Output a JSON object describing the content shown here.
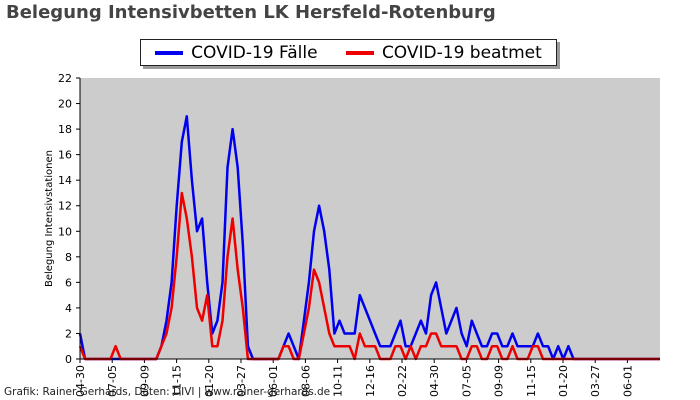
{
  "chart_data": {
    "type": "line",
    "title": "Belegung Intensivbetten LK Hersfeld-Rotenburg",
    "ylabel": "Belegung Intensivstationen",
    "ylim": [
      0,
      22
    ],
    "yticks": [
      0,
      2,
      4,
      6,
      8,
      10,
      12,
      14,
      16,
      18,
      20,
      22
    ],
    "grid": false,
    "legend_position": "top-center",
    "plot_background": "#cccccc",
    "x": [
      "2020-04-30",
      "2020-05-10",
      "2020-05-20",
      "2020-05-31",
      "2020-06-10",
      "2020-06-20",
      "2020-06-30",
      "2020-07-10",
      "2020-07-20",
      "2020-07-31",
      "2020-08-10",
      "2020-08-20",
      "2020-08-31",
      "2020-09-10",
      "2020-09-20",
      "2020-09-30",
      "2020-10-10",
      "2020-10-20",
      "2020-10-31",
      "2020-11-10",
      "2020-11-20",
      "2020-11-30",
      "2020-12-10",
      "2020-12-20",
      "2020-12-31",
      "2021-01-10",
      "2021-01-20",
      "2021-01-31",
      "2021-02-10",
      "2021-02-20",
      "2021-02-28",
      "2021-03-10",
      "2021-03-20",
      "2021-03-31",
      "2021-04-10",
      "2021-04-20",
      "2021-04-30",
      "2021-05-10",
      "2021-05-20",
      "2021-05-31",
      "2021-06-10",
      "2021-06-20",
      "2021-06-30",
      "2021-07-10",
      "2021-07-20",
      "2021-07-31",
      "2021-08-10",
      "2021-08-20",
      "2021-08-31",
      "2021-09-10",
      "2021-09-20",
      "2021-09-30",
      "2021-10-10",
      "2021-10-20",
      "2021-10-31",
      "2021-11-10",
      "2021-11-20",
      "2021-11-30",
      "2021-12-10",
      "2021-12-20",
      "2021-12-31",
      "2022-01-10",
      "2022-01-20",
      "2022-01-31",
      "2022-02-10",
      "2022-02-20",
      "2022-02-28",
      "2022-03-10",
      "2022-03-20",
      "2022-03-31",
      "2022-04-10",
      "2022-04-20",
      "2022-04-30",
      "2022-05-10",
      "2022-05-20",
      "2022-05-31",
      "2022-06-10",
      "2022-06-20",
      "2022-06-30",
      "2022-07-10",
      "2022-07-20",
      "2022-07-31",
      "2022-08-10",
      "2022-08-20",
      "2022-08-31",
      "2022-09-10",
      "2022-09-20",
      "2022-09-30",
      "2022-10-10",
      "2022-10-20",
      "2022-10-31",
      "2022-11-10",
      "2022-11-20",
      "2022-11-30",
      "2022-12-10",
      "2022-12-20",
      "2022-12-31",
      "2023-01-10",
      "2023-01-20",
      "2023-01-31",
      "2023-02-10",
      "2023-02-20",
      "2023-02-28",
      "2023-03-10",
      "2023-03-20",
      "2023-03-31",
      "2023-04-10",
      "2023-04-20",
      "2023-04-30",
      "2023-05-10",
      "2023-05-20",
      "2023-05-31",
      "2023-06-10",
      "2023-06-20",
      "2023-06-30"
    ],
    "series": [
      {
        "name": "COVID-19 Fälle",
        "color": "#0000ee",
        "values": [
          2,
          0,
          0,
          0,
          0,
          0,
          0,
          0,
          0,
          0,
          0,
          0,
          0,
          0,
          0,
          0,
          1,
          3,
          6,
          12,
          17,
          19,
          14,
          10,
          11,
          6,
          2,
          3,
          6,
          15,
          18,
          15,
          9,
          1,
          0,
          0,
          0,
          0,
          0,
          0,
          1,
          2,
          1,
          0,
          3,
          6,
          10,
          12,
          10,
          7,
          2,
          3,
          2,
          2,
          2,
          5,
          4,
          3,
          2,
          1,
          1,
          1,
          2,
          3,
          1,
          1,
          2,
          3,
          2,
          5,
          6,
          4,
          2,
          3,
          4,
          2,
          1,
          3,
          2,
          1,
          1,
          2,
          2,
          1,
          1,
          2,
          1,
          1,
          1,
          1,
          2,
          1,
          1,
          0,
          1,
          0,
          1,
          0,
          0,
          0,
          0,
          0,
          0,
          0,
          0,
          0,
          0,
          0,
          0,
          0,
          0,
          0,
          0,
          0,
          0
        ]
      },
      {
        "name": "COVID-19 beatmet",
        "color": "#ee0000",
        "values": [
          1,
          0,
          0,
          0,
          0,
          0,
          0,
          1,
          0,
          0,
          0,
          0,
          0,
          0,
          0,
          0,
          1,
          2,
          4,
          8,
          13,
          11,
          8,
          4,
          3,
          5,
          1,
          1,
          3,
          8,
          11,
          7,
          4,
          0,
          0,
          0,
          0,
          0,
          0,
          0,
          1,
          1,
          0,
          0,
          2,
          4,
          7,
          6,
          4,
          2,
          1,
          1,
          1,
          1,
          0,
          2,
          1,
          1,
          1,
          0,
          0,
          0,
          1,
          1,
          0,
          1,
          0,
          1,
          1,
          2,
          2,
          1,
          1,
          1,
          1,
          0,
          0,
          1,
          1,
          0,
          0,
          1,
          1,
          0,
          0,
          1,
          0,
          0,
          0,
          1,
          1,
          0,
          0,
          0,
          0,
          0,
          0,
          0,
          0,
          0,
          0,
          0,
          0,
          0,
          0,
          0,
          0,
          0,
          0,
          0,
          0,
          0,
          0,
          0,
          0
        ]
      }
    ],
    "xtick_labels": [
      "04-30",
      "07-05",
      "09-09",
      "11-15",
      "01-20",
      "03-27",
      "06-01",
      "08-06",
      "10-11",
      "12-16",
      "02-22",
      "04-30",
      "07-05",
      "09-09",
      "11-15",
      "01-20",
      "03-27",
      "06-01"
    ]
  },
  "footer": {
    "credit": "Grafik: Rainer Gerhards, Daten: DIVI | www.rainer-gerhards.de"
  }
}
